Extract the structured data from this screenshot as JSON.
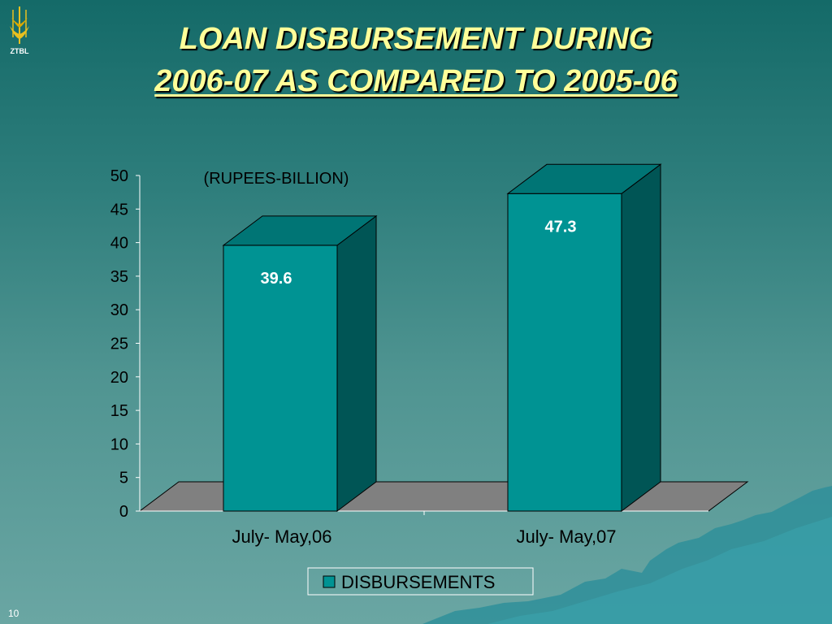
{
  "slide": {
    "logo_text": "ZTBL",
    "title_line1": "LOAN DISBURSEMENT  DURING",
    "title_line2": "2006-07 AS COMPARED TO 2005-06",
    "page_number": "10"
  },
  "colors": {
    "bar_front": "#009393",
    "bar_side": "#005555",
    "bar_top": "#007575",
    "floor": "#808080",
    "title": "#ffff99"
  },
  "chart_data": {
    "type": "bar",
    "categories": [
      "July- May,06",
      "July- May,07"
    ],
    "series": [
      {
        "name": "DISBURSEMENTS",
        "values": [
          39.6,
          47.3
        ]
      }
    ],
    "data_labels": [
      "39.6",
      "47.3"
    ],
    "annotation": "(RUPEES-BILLION)",
    "ylim": [
      0,
      50
    ],
    "yticks": [
      "0",
      "5",
      "10",
      "15",
      "20",
      "25",
      "30",
      "35",
      "40",
      "45",
      "50"
    ],
    "grid": false,
    "legend_position": "bottom",
    "style": "3d"
  }
}
